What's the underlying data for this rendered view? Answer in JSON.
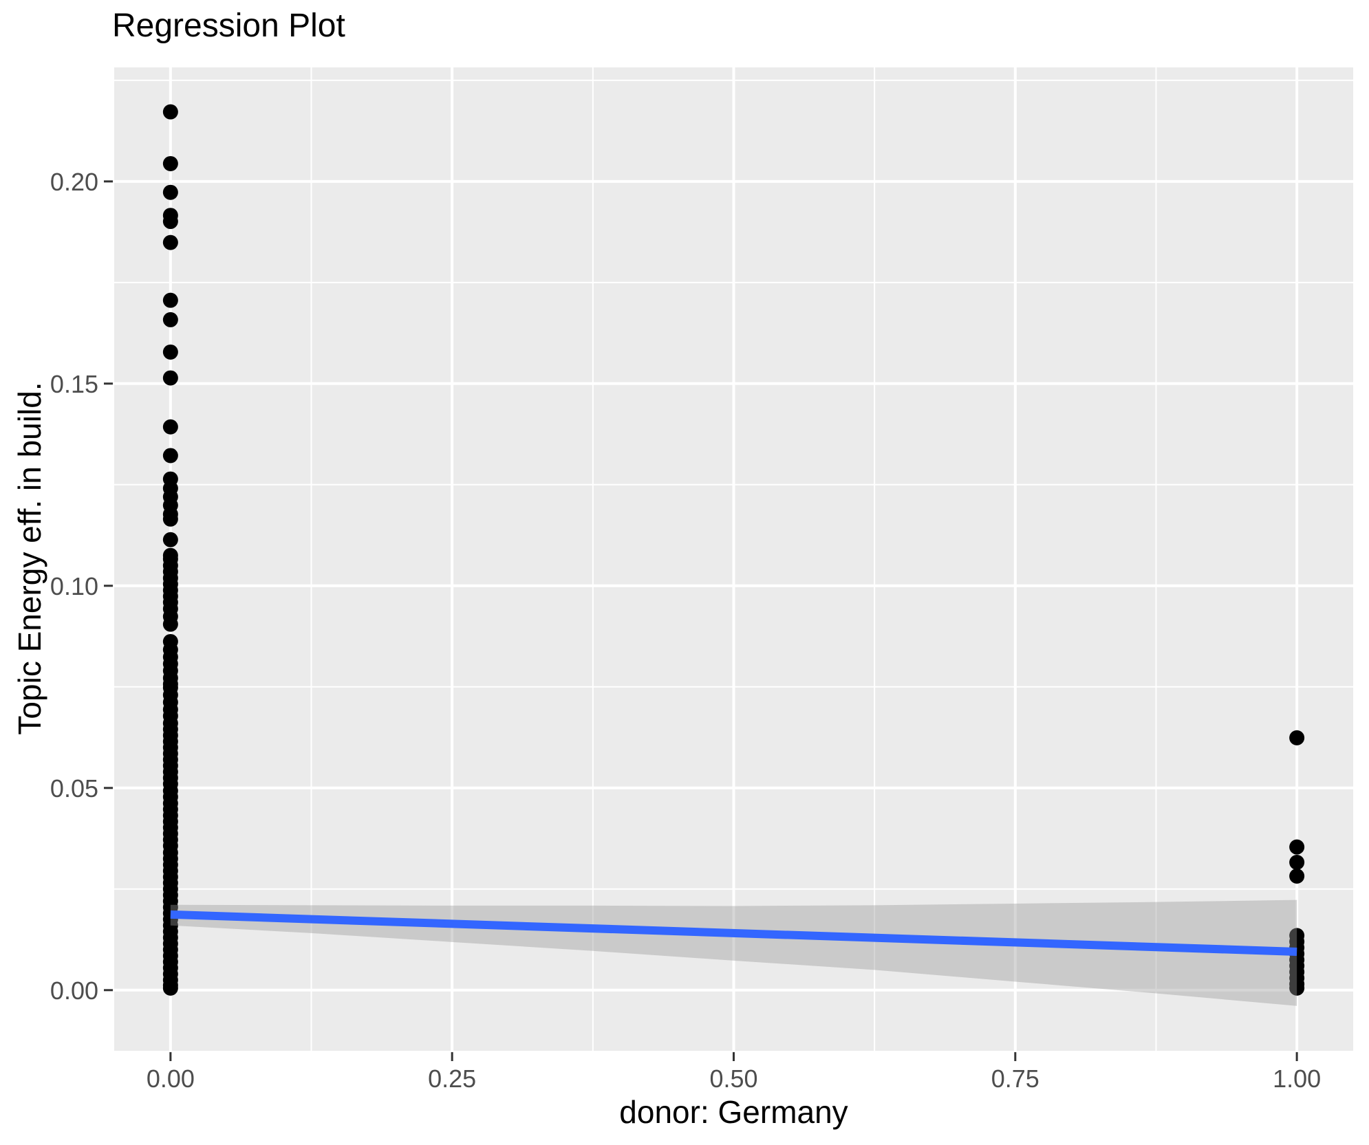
{
  "chart_data": {
    "type": "scatter",
    "title": "Regression Plot",
    "xlabel": "donor: Germany",
    "ylabel": "Topic Energy eff. in build.",
    "legend": "none",
    "grid": true,
    "xlim": [
      -0.05,
      1.05
    ],
    "ylim": [
      -0.015,
      0.2282
    ],
    "x_ticks": {
      "values": [
        0,
        0.25,
        0.5,
        0.75,
        1.0
      ],
      "labels": [
        "0.00",
        "0.25",
        "0.50",
        "0.75",
        "1.00"
      ]
    },
    "y_ticks": {
      "values": [
        0,
        0.05,
        0.1,
        0.15,
        0.2
      ],
      "labels": [
        "0.00",
        "0.05",
        "0.10",
        "0.15",
        "0.20"
      ]
    },
    "x_minor": [
      0.125,
      0.375,
      0.625,
      0.875
    ],
    "y_minor": [
      0.025,
      0.075,
      0.125,
      0.175,
      0.225
    ],
    "style": {
      "panel_bg": "#EBEBEB",
      "grid_color": "#FFFFFF",
      "major_grid_width": 4,
      "minor_grid_width": 2,
      "point_color": "#000000",
      "point_radius": 11,
      "line_color": "#3366FF",
      "line_width": 12,
      "band_fill": "#999999",
      "band_opacity": 0.4,
      "tick_color": "#333333",
      "tick_length": 13,
      "axis_text_color": "#4D4D4D",
      "axis_text_size": 36,
      "title_color": "#000000"
    },
    "series": [
      {
        "name": "donor: Germany = 0",
        "x": 0,
        "y": [
          0.2172,
          0.2044,
          0.1973,
          0.1916,
          0.1901,
          0.1849,
          0.1706,
          0.1658,
          0.1578,
          0.1514,
          0.1393,
          0.1322,
          0.1264,
          0.1241,
          0.122,
          0.1199,
          0.1177,
          0.1165,
          0.1114,
          0.1075,
          0.1066,
          0.105,
          0.1035,
          0.1019,
          0.1004,
          0.0989,
          0.0974,
          0.0959,
          0.0943,
          0.0924,
          0.0905,
          0.0862,
          0.0842,
          0.0824,
          0.0807,
          0.079,
          0.0772,
          0.0757,
          0.0748,
          0.073,
          0.0712,
          0.0694,
          0.0678,
          0.066,
          0.0645,
          0.063,
          0.0615,
          0.06,
          0.0585,
          0.057,
          0.0555,
          0.054,
          0.0525,
          0.051,
          0.0493,
          0.0478,
          0.0462,
          0.0447,
          0.0432,
          0.0417,
          0.0402,
          0.0387,
          0.0372,
          0.0357,
          0.034,
          0.0325,
          0.031,
          0.0295,
          0.028,
          0.0265,
          0.025,
          0.0235,
          0.022,
          0.0205,
          0.019,
          0.0175,
          0.016,
          0.0145,
          0.013,
          0.0115,
          0.01,
          0.0085,
          0.007,
          0.0055,
          0.004,
          0.0025,
          0.0012,
          0.0005
        ]
      },
      {
        "name": "donor: Germany = 1",
        "x": 1,
        "y": [
          0.0624,
          0.0354,
          0.0316,
          0.0282,
          0.0135,
          0.012,
          0.0105,
          0.009,
          0.0075,
          0.006,
          0.0045,
          0.003,
          0.0015,
          0.0005
        ]
      }
    ],
    "regression_line": {
      "x": [
        0,
        1
      ],
      "y": [
        0.0187,
        0.0095
      ]
    },
    "confidence_band": {
      "x": [
        0,
        0.125,
        0.25,
        0.375,
        0.5,
        0.625,
        0.75,
        0.875,
        1.0
      ],
      "upper": [
        0.0211,
        0.021,
        0.0209,
        0.0209,
        0.0208,
        0.021,
        0.0214,
        0.0218,
        0.0223
      ],
      "lower": [
        0.016,
        0.0141,
        0.0119,
        0.0097,
        0.0073,
        0.005,
        0.0021,
        -0.0008,
        -0.0039
      ]
    }
  }
}
